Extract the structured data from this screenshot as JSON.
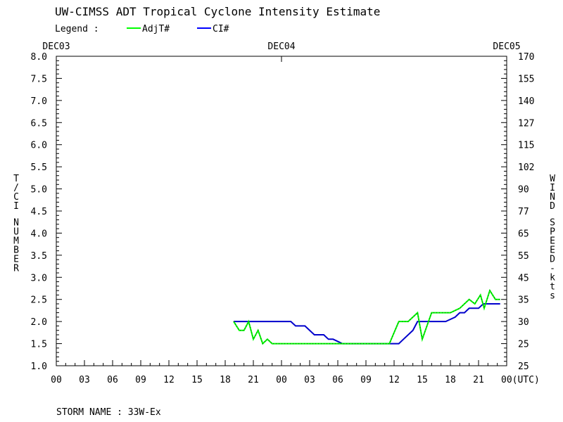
{
  "chart_data": {
    "type": "line",
    "title": "UW-CIMSS ADT Tropical Cyclone Intensity Estimate",
    "legend": {
      "label": "Legend :",
      "placement": "top-left",
      "entries": [
        {
          "name": "AdjT#",
          "color": "#00ff00"
        },
        {
          "name": "CI#",
          "color": "#0000ff"
        }
      ]
    },
    "ylabel_left": "T/CI NUMBER",
    "ylabel_right": "WIND SPEED-kts",
    "ylim": [
      1.0,
      8.0
    ],
    "xlim_hours": [
      0,
      48
    ],
    "yticks_left": [
      "1.0",
      "1.5",
      "2.0",
      "2.5",
      "3.0",
      "3.5",
      "4.0",
      "4.5",
      "5.0",
      "5.5",
      "6.0",
      "6.5",
      "7.0",
      "7.5",
      "8.0"
    ],
    "yticks_right": [
      "25",
      "25",
      "30",
      "35",
      "45",
      "55",
      "65",
      "77",
      "90",
      "102",
      "115",
      "127",
      "140",
      "155",
      "170"
    ],
    "xticks": [
      "00",
      "03",
      "06",
      "09",
      "12",
      "15",
      "18",
      "21",
      "00",
      "03",
      "06",
      "09",
      "12",
      "15",
      "18",
      "21",
      "00(UTC)"
    ],
    "date_labels": [
      {
        "text": "DEC03",
        "hour": 0
      },
      {
        "text": "DEC04",
        "hour": 24
      },
      {
        "text": "DEC05",
        "hour": 48
      }
    ],
    "footer": "STORM NAME : 33W-Ex",
    "series": [
      {
        "name": "AdjT#",
        "color": "#00ff00",
        "points": [
          [
            18.9,
            2.0
          ],
          [
            19.5,
            1.8
          ],
          [
            20.0,
            1.8
          ],
          [
            20.5,
            2.0
          ],
          [
            21.0,
            1.6
          ],
          [
            21.5,
            1.8
          ],
          [
            22.0,
            1.5
          ],
          [
            22.5,
            1.6
          ],
          [
            23.0,
            1.5
          ],
          [
            24.0,
            1.5
          ],
          [
            27.0,
            1.5
          ],
          [
            30.0,
            1.5
          ],
          [
            33.0,
            1.5
          ],
          [
            35.5,
            1.5
          ],
          [
            36.5,
            2.0
          ],
          [
            37.5,
            2.0
          ],
          [
            38.5,
            2.2
          ],
          [
            39.0,
            1.6
          ],
          [
            40.0,
            2.2
          ],
          [
            41.0,
            2.2
          ],
          [
            42.0,
            2.2
          ],
          [
            43.0,
            2.3
          ],
          [
            43.5,
            2.4
          ],
          [
            44.0,
            2.5
          ],
          [
            44.6,
            2.4
          ],
          [
            45.2,
            2.6
          ],
          [
            45.6,
            2.3
          ],
          [
            46.2,
            2.7
          ],
          [
            46.8,
            2.5
          ],
          [
            47.3,
            2.5
          ]
        ]
      },
      {
        "name": "CI#",
        "color": "#0000cc",
        "points": [
          [
            18.9,
            2.0
          ],
          [
            22.0,
            2.0
          ],
          [
            25.0,
            2.0
          ],
          [
            25.5,
            1.9
          ],
          [
            26.5,
            1.9
          ],
          [
            27.5,
            1.7
          ],
          [
            28.5,
            1.7
          ],
          [
            29.0,
            1.6
          ],
          [
            29.5,
            1.6
          ],
          [
            30.5,
            1.5
          ],
          [
            35.5,
            1.5
          ],
          [
            36.5,
            1.5
          ],
          [
            37.0,
            1.6
          ],
          [
            38.0,
            1.8
          ],
          [
            38.5,
            2.0
          ],
          [
            41.5,
            2.0
          ],
          [
            42.5,
            2.1
          ],
          [
            43.0,
            2.2
          ],
          [
            43.5,
            2.2
          ],
          [
            44.0,
            2.3
          ],
          [
            45.0,
            2.3
          ],
          [
            45.5,
            2.4
          ],
          [
            47.3,
            2.4
          ]
        ]
      }
    ]
  }
}
